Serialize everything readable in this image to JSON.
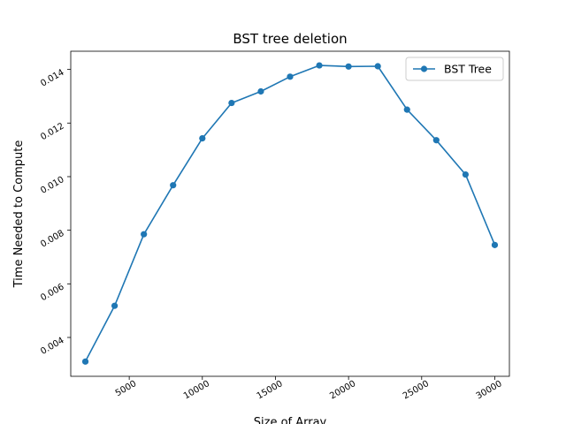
{
  "chart_data": {
    "type": "line",
    "title": "BST tree deletion",
    "xlabel": "Size of Array",
    "ylabel": "Time Needed to Compute",
    "xlim": [
      1000,
      31000
    ],
    "ylim": [
      0.00255,
      0.01468
    ],
    "xticks": [
      5000,
      10000,
      15000,
      20000,
      25000,
      30000
    ],
    "yticks": [
      0.004,
      0.006,
      0.008,
      0.01,
      0.012,
      0.014
    ],
    "ytick_labels": [
      "0.004",
      "0.006",
      "0.008",
      "0.010",
      "0.012",
      "0.014"
    ],
    "tick_rotation_deg": 30,
    "grid": false,
    "legend_position": "top-right",
    "series": [
      {
        "name": "BST Tree",
        "color": "#1f77b4",
        "marker": "circle",
        "x": [
          2000,
          4000,
          6000,
          8000,
          10000,
          12000,
          14000,
          16000,
          18000,
          20000,
          22000,
          24000,
          26000,
          28000,
          30000
        ],
        "y": [
          0.0031,
          0.00518,
          0.00785,
          0.00968,
          0.01143,
          0.01275,
          0.01318,
          0.01373,
          0.01415,
          0.01411,
          0.01412,
          0.0125,
          0.01136,
          0.01008,
          0.00745
        ]
      }
    ]
  }
}
